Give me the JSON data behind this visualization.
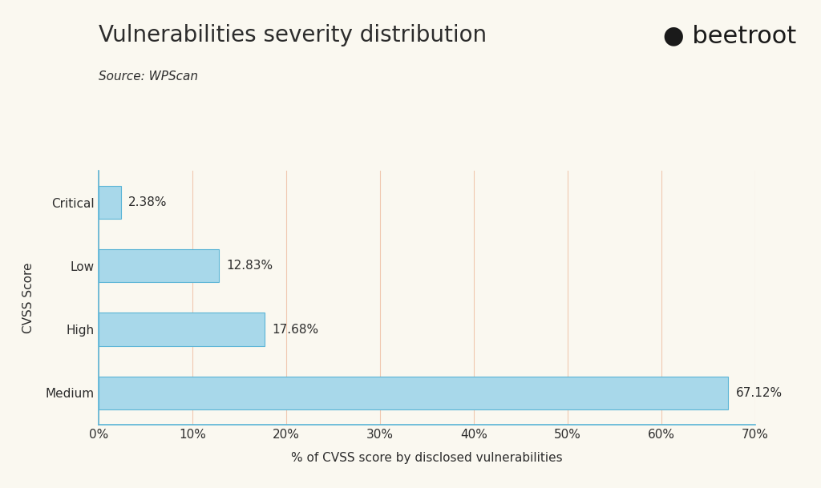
{
  "title": "Vulnerabilities severity distribution",
  "source": "Source: WPScan",
  "categories": [
    "Medium",
    "High",
    "Low",
    "Critical"
  ],
  "values": [
    67.12,
    17.68,
    12.83,
    2.38
  ],
  "labels": [
    "67.12%",
    "17.68%",
    "12.83%",
    "2.38%"
  ],
  "bar_color": "#a8d8ea",
  "bar_edge_color": "#5ab4d6",
  "xlabel": "% of CVSS score by disclosed vulnerabilities",
  "ylabel": "CVSS Score",
  "xlim": [
    0,
    70
  ],
  "xticks": [
    0,
    10,
    20,
    30,
    40,
    50,
    60,
    70
  ],
  "xtick_labels": [
    "0%",
    "10%",
    "20%",
    "30%",
    "40%",
    "50%",
    "60%",
    "70%"
  ],
  "background_color": "#faf8f0",
  "axis_color": "#5ab4d6",
  "grid_color_vertical": "#f0c8b0",
  "text_color": "#2c2c2c",
  "title_fontsize": 20,
  "source_fontsize": 11,
  "tick_fontsize": 11,
  "label_fontsize": 11,
  "axis_label_fontsize": 11,
  "bar_label_fontsize": 11,
  "logo_fontsize": 22,
  "bar_height": 0.52
}
